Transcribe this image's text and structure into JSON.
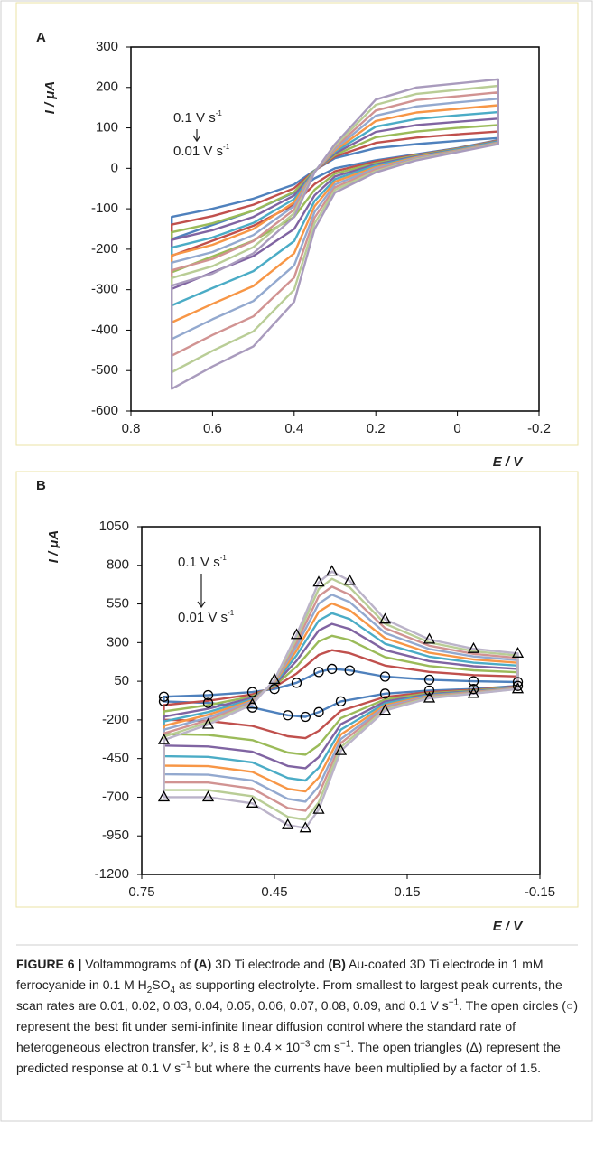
{
  "chart_data": [
    {
      "type": "line",
      "panel_label": "A",
      "xlabel": "E / V",
      "ylabel": "I / μA",
      "xlim": [
        0.8,
        -0.2
      ],
      "xticks": [
        0.8,
        0.6,
        0.4,
        0.2,
        0,
        -0.2
      ],
      "ylim": [
        -600,
        300
      ],
      "yticks": [
        -600,
        -500,
        -400,
        -300,
        -200,
        -100,
        0,
        100,
        200,
        300
      ],
      "annotations": [
        {
          "text": "0.1 V s",
          "sup": "-1"
        },
        {
          "text": "0.01 V s",
          "sup": "-1"
        }
      ],
      "x": [
        0.7,
        0.6,
        0.5,
        0.4,
        0.35,
        0.3,
        0.2,
        0.1,
        0,
        -0.1,
        -0.1,
        0,
        0.1,
        0.2,
        0.3,
        0.35,
        0.4,
        0.5,
        0.6,
        0.7
      ],
      "series": [
        {
          "color": "#4f81bd",
          "values": [
            -175,
            -140,
            -105,
            -60,
            -25,
            0,
            20,
            35,
            50,
            70,
            75,
            68,
            60,
            50,
            25,
            -5,
            -40,
            -75,
            -100,
            -120
          ]
        },
        {
          "color": "#c0504d",
          "values": [
            -216,
            -179,
            -142,
            -90,
            -39,
            -7,
            17,
            33,
            49,
            69,
            91,
            84,
            76,
            63,
            29,
            -6,
            -49,
            -90,
            -118,
            -139
          ]
        },
        {
          "color": "#9bbb59",
          "values": [
            -257,
            -218,
            -179,
            -120,
            -53,
            -13,
            13,
            32,
            48,
            68,
            107,
            100,
            91,
            77,
            33,
            -6,
            -58,
            -105,
            -136,
            -158
          ]
        },
        {
          "color": "#8064a2",
          "values": [
            -298,
            -257,
            -217,
            -150,
            -67,
            -20,
            10,
            30,
            47,
            67,
            123,
            115,
            107,
            90,
            37,
            -7,
            -67,
            -120,
            -153,
            -177
          ]
        },
        {
          "color": "#4bacc6",
          "values": [
            -339,
            -296,
            -254,
            -180,
            -81,
            -27,
            7,
            28,
            46,
            66,
            139,
            131,
            122,
            103,
            41,
            -7,
            -76,
            -135,
            -171,
            -196
          ]
        },
        {
          "color": "#f79646",
          "values": [
            -381,
            -335,
            -291,
            -210,
            -94,
            -33,
            3,
            27,
            44,
            64,
            156,
            147,
            138,
            117,
            44,
            -8,
            -84,
            -150,
            -189,
            -215
          ]
        },
        {
          "color": "#93a9cf",
          "values": [
            -422,
            -373,
            -328,
            -240,
            -108,
            -40,
            0,
            25,
            43,
            63,
            172,
            163,
            153,
            130,
            48,
            -8,
            -93,
            -165,
            -207,
            -233
          ]
        },
        {
          "color": "#d19392",
          "values": [
            -463,
            -412,
            -366,
            -270,
            -122,
            -47,
            -3,
            23,
            42,
            62,
            188,
            178,
            169,
            143,
            52,
            -9,
            -102,
            -180,
            -224,
            -252
          ]
        },
        {
          "color": "#b9cd96",
          "values": [
            -504,
            -451,
            -403,
            -300,
            -136,
            -53,
            -7,
            22,
            41,
            61,
            204,
            194,
            184,
            157,
            56,
            -9,
            -111,
            -195,
            -242,
            -271
          ]
        },
        {
          "color": "#a99bbd",
          "values": [
            -545,
            -490,
            -440,
            -330,
            -150,
            -60,
            -10,
            20,
            40,
            60,
            220,
            210,
            200,
            170,
            60,
            -10,
            -120,
            -210,
            -260,
            -290
          ]
        }
      ]
    },
    {
      "type": "line",
      "panel_label": "B",
      "xlabel": "E / V",
      "ylabel": "I / μA",
      "xlim": [
        0.75,
        -0.15
      ],
      "xticks": [
        0.75,
        0.45,
        0.15,
        -0.15
      ],
      "ylim": [
        -1200,
        1050
      ],
      "yticks": [
        -1200,
        -950,
        -700,
        -450,
        -200,
        50,
        300,
        550,
        800,
        1050
      ],
      "annotations": [
        {
          "text": "0.1 V s",
          "sup": "-1"
        },
        {
          "text": "0.01 V s",
          "sup": "-1"
        }
      ],
      "x": [
        0.7,
        0.6,
        0.5,
        0.45,
        0.4,
        0.35,
        0.32,
        0.28,
        0.2,
        0.1,
        0,
        -0.1,
        -0.1,
        0,
        0.1,
        0.2,
        0.3,
        0.35,
        0.38,
        0.42,
        0.5,
        0.6,
        0.7
      ],
      "series": [
        {
          "color": "#4f81bd",
          "values": [
            -50,
            -40,
            -20,
            0,
            40,
            110,
            130,
            120,
            80,
            60,
            50,
            45,
            20,
            0,
            -10,
            -30,
            -80,
            -150,
            -180,
            -170,
            -120,
            -90,
            -80
          ]
        },
        {
          "color": "#c0504d",
          "values": [
            -104,
            -76,
            -35,
            12,
            100,
            221,
            251,
            231,
            151,
            110,
            90,
            81,
            16,
            -6,
            -20,
            -51,
            -141,
            -271,
            -318,
            -306,
            -239,
            -207,
            -199
          ]
        },
        {
          "color": "#9bbb59",
          "values": [
            -145,
            -105,
            -47,
            20,
            145,
            307,
            344,
            317,
            206,
            148,
            121,
            108,
            13,
            -10,
            -27,
            -67,
            -189,
            -364,
            -425,
            -411,
            -331,
            -297,
            -291
          ]
        },
        {
          "color": "#8064a2",
          "values": [
            -179,
            -128,
            -57,
            28,
            183,
            378,
            421,
            388,
            251,
            180,
            147,
            130,
            11,
            -14,
            -33,
            -81,
            -228,
            -441,
            -513,
            -498,
            -406,
            -372,
            -366
          ]
        },
        {
          "color": "#4bacc6",
          "values": [
            -210,
            -149,
            -66,
            34,
            217,
            442,
            490,
            452,
            292,
            209,
            170,
            151,
            9,
            -17,
            -39,
            -93,
            -263,
            -510,
            -592,
            -576,
            -475,
            -439,
            -435
          ]
        },
        {
          "color": "#f79646",
          "values": [
            -238,
            -167,
            -74,
            40,
            248,
            499,
            553,
            509,
            328,
            234,
            191,
            169,
            7,
            -20,
            -44,
            -104,
            -295,
            -573,
            -663,
            -646,
            -536,
            -499,
            -496
          ]
        },
        {
          "color": "#93a9cf",
          "values": [
            -263,
            -185,
            -81,
            46,
            276,
            552,
            610,
            562,
            362,
            258,
            210,
            186,
            5,
            -23,
            -48,
            -114,
            -324,
            -630,
            -729,
            -711,
            -592,
            -555,
            -552
          ]
        },
        {
          "color": "#d19392",
          "values": [
            -287,
            -201,
            -88,
            51,
            302,
            600,
            662,
            610,
            393,
            280,
            227,
            201,
            3,
            -25,
            -52,
            -123,
            -350,
            -682,
            -788,
            -770,
            -644,
            -605,
            -604
          ]
        },
        {
          "color": "#b9cd96",
          "values": [
            -309,
            -216,
            -94,
            56,
            327,
            647,
            713,
            657,
            422,
            301,
            244,
            216,
            1,
            -28,
            -56,
            -132,
            -376,
            -733,
            -846,
            -827,
            -694,
            -654,
            -654
          ]
        },
        {
          "color": "#bbb3c9",
          "values": [
            -330,
            -230,
            -100,
            60,
            350,
            690,
            760,
            700,
            450,
            320,
            260,
            230,
            0,
            -30,
            -60,
            -140,
            -400,
            -780,
            -900,
            -880,
            -740,
            -700,
            -700
          ]
        },
        {
          "color": "#000000",
          "marker": "circle",
          "values": [
            -50,
            -40,
            -20,
            0,
            40,
            110,
            130,
            120,
            80,
            60,
            50,
            45,
            20,
            0,
            -10,
            -30,
            -80,
            -150,
            -180,
            -170,
            -120,
            -90,
            -80
          ]
        },
        {
          "color": "#000000",
          "marker": "triangle",
          "values": [
            -330,
            -230,
            -100,
            60,
            350,
            690,
            760,
            700,
            450,
            320,
            260,
            230,
            0,
            -30,
            -60,
            -140,
            -400,
            -780,
            -900,
            -880,
            -740,
            -700,
            -700
          ]
        }
      ]
    }
  ],
  "caption": [
    "FIGURE 6 |",
    " Voltammograms of ",
    "(A)",
    " 3D Ti electrode and ",
    "(B)",
    " Au-coated 3D Ti electrode in 1 mM ferrocyanide in 0.1 M H",
    "2",
    "SO",
    "4",
    " as supporting electrolyte. From smallest to largest peak currents, the scan rates are 0.01, 0.02, 0.03, 0.04, 0.05, 0.06, 0.07, 0.08, 0.09, and 0.1 V s",
    "−1",
    ". The open circles (○) represent the best fit under semi-infinite linear diffusion control where the standard rate of heterogeneous electron transfer, k",
    "o",
    ", is 8 ± 0.4 × 10",
    "−3",
    " cm s",
    "−1",
    ". The open triangles (Δ) represent the predicted response at 0.1 V s",
    "−1",
    " but where the currents have been multiplied by a factor of 1.5."
  ]
}
